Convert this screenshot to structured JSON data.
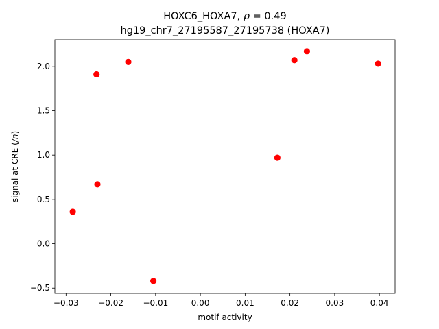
{
  "chart_data": {
    "type": "scatter",
    "title_line1": "HOXC6_HOXA7, ρ = 0.49",
    "title_line2": "hg19_chr7_27195587_27195738 (HOXA7)",
    "xlabel": "motif activity",
    "ylabel": "signal at CRE (/n)",
    "xlim": [
      -0.0325,
      0.0435
    ],
    "ylim": [
      -0.56,
      2.3
    ],
    "xticks": [
      -0.03,
      -0.02,
      -0.01,
      0.0,
      0.01,
      0.02,
      0.03,
      0.04
    ],
    "xtick_labels": [
      "−0.03",
      "−0.02",
      "−0.01",
      "0.00",
      "0.01",
      "0.02",
      "0.03",
      "0.04"
    ],
    "yticks": [
      -0.5,
      0.0,
      0.5,
      1.0,
      1.5,
      2.0
    ],
    "ytick_labels": [
      "−0.5",
      "0.0",
      "0.5",
      "1.0",
      "1.5",
      "2.0"
    ],
    "grid": false,
    "legend": "none",
    "marker_color": "#ff0000",
    "points": [
      {
        "x": -0.0285,
        "y": 0.36
      },
      {
        "x": -0.0232,
        "y": 1.91
      },
      {
        "x": -0.023,
        "y": 0.67
      },
      {
        "x": -0.0161,
        "y": 2.05
      },
      {
        "x": -0.0105,
        "y": -0.42
      },
      {
        "x": 0.0172,
        "y": 0.97
      },
      {
        "x": 0.021,
        "y": 2.07
      },
      {
        "x": 0.0238,
        "y": 2.17
      },
      {
        "x": 0.0397,
        "y": 2.03
      }
    ]
  }
}
